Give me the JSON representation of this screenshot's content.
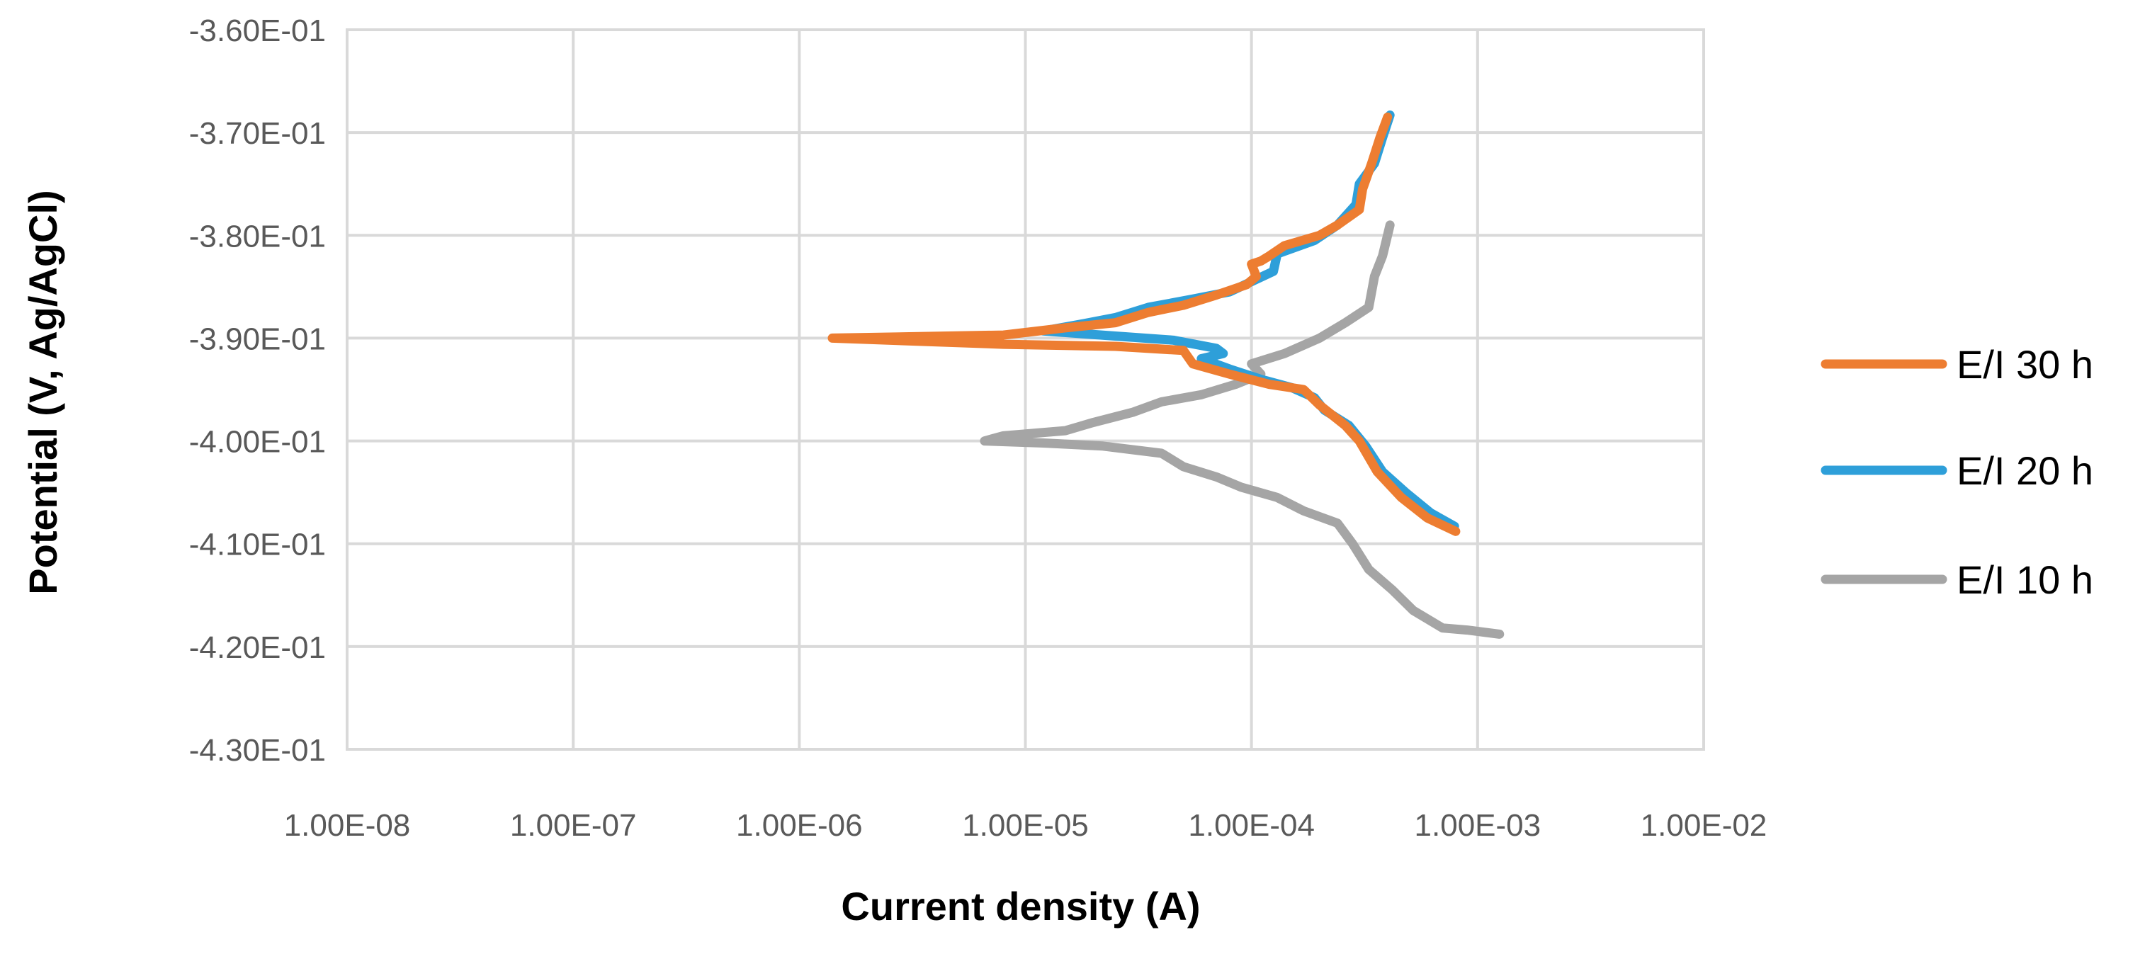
{
  "chart_data": {
    "type": "line",
    "title": "",
    "xlabel": "Current density (A)",
    "ylabel": "Potential (V, Ag/AgCl)",
    "x_scale": "log",
    "xlim": [
      1e-08,
      0.01
    ],
    "ylim": [
      -0.43,
      -0.36
    ],
    "x_tick_labels": [
      "1.00E-08",
      "1.00E-07",
      "1.00E-06",
      "1.00E-05",
      "1.00E-04",
      "1.00E-03",
      "1.00E-02"
    ],
    "y_tick_labels": [
      "-3.60E-01",
      "-3.70E-01",
      "-3.80E-01",
      "-3.90E-01",
      "-4.00E-01",
      "-4.10E-01",
      "-4.20E-01",
      "-4.30E-01"
    ],
    "grid": true,
    "legend_position": "right",
    "series": [
      {
        "name": "E/I 30 h",
        "color": "#ED7D31",
        "points": [
          [
            0.0004,
            -0.3685
          ],
          [
            0.00037,
            -0.3705
          ],
          [
            0.00034,
            -0.373
          ],
          [
            0.00031,
            -0.3755
          ],
          [
            0.0003,
            -0.3775
          ],
          [
            0.00024,
            -0.379
          ],
          [
            0.0002,
            -0.38
          ],
          [
            0.00014,
            -0.381
          ],
          [
            0.00012,
            -0.382
          ],
          [
            0.00011,
            -0.3825
          ],
          [
            0.0001,
            -0.3828
          ],
          [
            0.000105,
            -0.384
          ],
          [
            9.5e-05,
            -0.3848
          ],
          [
            7e-05,
            -0.3858
          ],
          [
            5e-05,
            -0.3868
          ],
          [
            3.5e-05,
            -0.3875
          ],
          [
            2.5e-05,
            -0.3885
          ],
          [
            1.5e-05,
            -0.389
          ],
          [
            8e-06,
            -0.3897
          ],
          [
            1.4e-06,
            -0.39
          ],
          [
            8e-06,
            -0.3906
          ],
          [
            2.5e-05,
            -0.3908
          ],
          [
            5e-05,
            -0.3912
          ],
          [
            5.5e-05,
            -0.3925
          ],
          [
            8e-05,
            -0.3935
          ],
          [
            0.00012,
            -0.3945
          ],
          [
            0.00017,
            -0.395
          ],
          [
            0.0002,
            -0.3965
          ],
          [
            0.00026,
            -0.3985
          ],
          [
            0.0003,
            -0.4
          ],
          [
            0.00036,
            -0.403
          ],
          [
            0.00046,
            -0.4055
          ],
          [
            0.0006,
            -0.4075
          ],
          [
            0.0008,
            -0.4088
          ]
        ]
      },
      {
        "name": "E/I 20 h",
        "color": "#2E9FD9",
        "points": [
          [
            0.00041,
            -0.3683
          ],
          [
            0.00038,
            -0.3705
          ],
          [
            0.00035,
            -0.373
          ],
          [
            0.0003,
            -0.375
          ],
          [
            0.00029,
            -0.377
          ],
          [
            0.00024,
            -0.379
          ],
          [
            0.00019,
            -0.3805
          ],
          [
            0.00013,
            -0.3818
          ],
          [
            0.000125,
            -0.3835
          ],
          [
            0.0001,
            -0.3845
          ],
          [
            8e-05,
            -0.3855
          ],
          [
            5.5e-05,
            -0.3862
          ],
          [
            3.5e-05,
            -0.387
          ],
          [
            2.5e-05,
            -0.388
          ],
          [
            1.8e-05,
            -0.3886
          ],
          [
            1.2e-05,
            -0.3893
          ],
          [
            2.5e-05,
            -0.3898
          ],
          [
            4.5e-05,
            -0.3902
          ],
          [
            7e-05,
            -0.391
          ],
          [
            7.5e-05,
            -0.3915
          ],
          [
            6e-05,
            -0.392
          ],
          [
            8e-05,
            -0.393
          ],
          [
            0.00011,
            -0.394
          ],
          [
            0.00015,
            -0.3948
          ],
          [
            0.00019,
            -0.3958
          ],
          [
            0.00021,
            -0.397
          ],
          [
            0.00027,
            -0.3985
          ],
          [
            0.00032,
            -0.4005
          ],
          [
            0.00038,
            -0.403
          ],
          [
            0.00048,
            -0.405
          ],
          [
            0.00062,
            -0.407
          ],
          [
            0.00079,
            -0.4083
          ]
        ]
      },
      {
        "name": "E/I 10 h",
        "color": "#A5A5A5",
        "points": [
          [
            0.00041,
            -0.379
          ],
          [
            0.00038,
            -0.382
          ],
          [
            0.00035,
            -0.384
          ],
          [
            0.00033,
            -0.387
          ],
          [
            0.00026,
            -0.3885
          ],
          [
            0.0002,
            -0.39
          ],
          [
            0.00014,
            -0.3915
          ],
          [
            0.0001,
            -0.3925
          ],
          [
            0.00011,
            -0.3935
          ],
          [
            8.5e-05,
            -0.3945
          ],
          [
            6e-05,
            -0.3955
          ],
          [
            4e-05,
            -0.3962
          ],
          [
            3e-05,
            -0.3972
          ],
          [
            2e-05,
            -0.3982
          ],
          [
            1.5e-05,
            -0.399
          ],
          [
            8e-06,
            -0.3995
          ],
          [
            6.6e-06,
            -0.4
          ],
          [
            1.2e-05,
            -0.4002
          ],
          [
            2.2e-05,
            -0.4005
          ],
          [
            4e-05,
            -0.4012
          ],
          [
            5e-05,
            -0.4025
          ],
          [
            7e-05,
            -0.4035
          ],
          [
            9e-05,
            -0.4045
          ],
          [
            0.00013,
            -0.4055
          ],
          [
            0.00017,
            -0.4068
          ],
          [
            0.00024,
            -0.408
          ],
          [
            0.00028,
            -0.41
          ],
          [
            0.00033,
            -0.4125
          ],
          [
            0.00042,
            -0.4145
          ],
          [
            0.00052,
            -0.4165
          ],
          [
            0.0007,
            -0.4182
          ],
          [
            0.0009,
            -0.4184
          ],
          [
            0.00125,
            -0.4188
          ]
        ]
      }
    ]
  }
}
